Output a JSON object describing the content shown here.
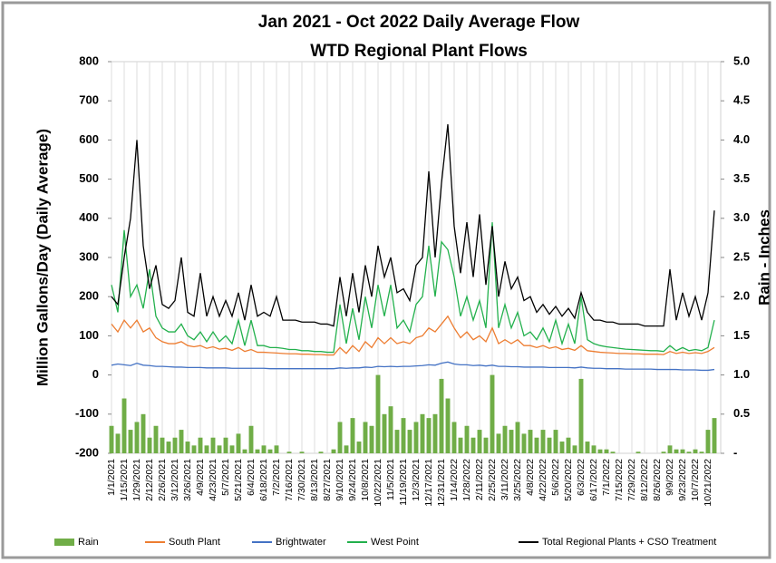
{
  "chart_data": {
    "type": "line",
    "title": "Jan 2021 - Oct 2022 Daily Average Flow",
    "subtitle": "WTD Regional Plant Flows",
    "y_label": "Million Gallons/Day (Daily Average)",
    "y2_label": "Rain - Inches",
    "categories": [
      "1/1/2021",
      null,
      "1/15/2021",
      null,
      "1/29/2021",
      null,
      "2/12/2021",
      null,
      "2/26/2021",
      null,
      "3/12/2021",
      null,
      "3/26/2021",
      null,
      "4/9/2021",
      null,
      "4/23/2021",
      null,
      "5/7/2021",
      null,
      "5/21/2021",
      null,
      "6/4/2021",
      null,
      "6/18/2021",
      null,
      "7/2/2021",
      null,
      "7/16/2021",
      null,
      "7/30/2021",
      null,
      "8/13/2021",
      null,
      "8/27/2021",
      null,
      "9/10/2021",
      null,
      "9/24/2021",
      null,
      "10/8/2021",
      null,
      "10/22/2021",
      null,
      "11/5/2021",
      null,
      "11/19/2021",
      null,
      "12/3/2021",
      null,
      "12/17/2021",
      null,
      "12/31/2021",
      null,
      "1/14/2022",
      null,
      "1/28/2022",
      null,
      "2/11/2022",
      null,
      "2/25/2022",
      null,
      "3/11/2022",
      null,
      "3/25/2022",
      null,
      "4/8/2022",
      null,
      "4/22/2022",
      null,
      "5/6/2022",
      null,
      "5/20/2022",
      null,
      "6/3/2022",
      null,
      "6/17/2022",
      null,
      "7/1/2022",
      null,
      "7/15/2022",
      null,
      "7/29/2022",
      null,
      "8/12/2022",
      null,
      "8/26/2022",
      null,
      "9/9/2022",
      null,
      "9/23/2022",
      null,
      "10/7/2022",
      null,
      "10/21/2022",
      null
    ],
    "series": [
      {
        "name": "Rain",
        "type": "bar",
        "axis": "y2",
        "color": "#70ad47",
        "values": [
          0.35,
          0.25,
          0.7,
          0.3,
          0.4,
          0.5,
          0.2,
          0.35,
          0.2,
          0.15,
          0.2,
          0.3,
          0.15,
          0.1,
          0.2,
          0.1,
          0.2,
          0.1,
          0.2,
          0.1,
          0.25,
          0.05,
          0.35,
          0.05,
          0.1,
          0.05,
          0.1,
          0,
          0.02,
          0,
          0.02,
          0,
          0,
          0.02,
          0,
          0.05,
          0.4,
          0.1,
          0.45,
          0.15,
          0.4,
          0.35,
          1.0,
          0.5,
          0.6,
          0.3,
          0.45,
          0.3,
          0.4,
          0.5,
          0.45,
          0.5,
          0.95,
          0.7,
          0.4,
          0.2,
          0.35,
          0.2,
          0.3,
          0.2,
          1.0,
          0.25,
          0.35,
          0.3,
          0.4,
          0.25,
          0.3,
          0.2,
          0.3,
          0.2,
          0.3,
          0.15,
          0.2,
          0.1,
          0.95,
          0.15,
          0.1,
          0.05,
          0.05,
          0.02,
          0,
          0,
          0,
          0.02,
          0,
          0,
          0,
          0.02,
          0.1,
          0.05,
          0.05,
          0.02,
          0.05,
          0.02,
          0.3,
          0.45
        ]
      },
      {
        "name": "South Plant",
        "color": "#ed7d31",
        "values": [
          130,
          110,
          140,
          120,
          140,
          110,
          120,
          95,
          85,
          80,
          80,
          85,
          75,
          72,
          75,
          68,
          72,
          66,
          68,
          63,
          70,
          60,
          65,
          58,
          58,
          57,
          56,
          55,
          54,
          54,
          53,
          53,
          52,
          52,
          51,
          51,
          70,
          55,
          75,
          60,
          85,
          70,
          95,
          80,
          95,
          80,
          85,
          80,
          95,
          100,
          120,
          110,
          130,
          150,
          120,
          95,
          110,
          90,
          100,
          85,
          120,
          80,
          90,
          80,
          90,
          75,
          75,
          70,
          75,
          68,
          72,
          65,
          68,
          63,
          75,
          62,
          60,
          58,
          57,
          56,
          55,
          55,
          54,
          54,
          53,
          53,
          53,
          52,
          60,
          55,
          58,
          55,
          57,
          55,
          60,
          70
        ]
      },
      {
        "name": "Brightwater",
        "color": "#4472c4",
        "values": [
          25,
          28,
          26,
          24,
          30,
          25,
          24,
          22,
          22,
          21,
          20,
          20,
          19,
          19,
          19,
          18,
          18,
          18,
          18,
          17,
          17,
          17,
          17,
          17,
          17,
          16,
          16,
          16,
          16,
          16,
          16,
          16,
          16,
          16,
          16,
          16,
          18,
          17,
          18,
          18,
          20,
          19,
          22,
          21,
          22,
          21,
          22,
          22,
          23,
          24,
          26,
          25,
          30,
          33,
          28,
          26,
          26,
          24,
          25,
          23,
          25,
          22,
          22,
          21,
          21,
          20,
          20,
          20,
          20,
          19,
          19,
          19,
          19,
          18,
          20,
          18,
          17,
          17,
          16,
          16,
          16,
          15,
          15,
          15,
          15,
          15,
          14,
          14,
          14,
          14,
          13,
          13,
          13,
          12,
          12,
          14
        ]
      },
      {
        "name": "West Point",
        "color": "#22b04c",
        "values": [
          230,
          160,
          370,
          200,
          230,
          170,
          270,
          150,
          120,
          110,
          110,
          130,
          100,
          90,
          110,
          85,
          110,
          85,
          100,
          80,
          140,
          75,
          140,
          75,
          75,
          70,
          70,
          68,
          65,
          65,
          62,
          62,
          60,
          60,
          58,
          58,
          180,
          80,
          170,
          90,
          200,
          120,
          230,
          150,
          230,
          120,
          140,
          110,
          180,
          200,
          330,
          200,
          340,
          320,
          250,
          150,
          200,
          140,
          190,
          120,
          390,
          120,
          180,
          120,
          160,
          100,
          110,
          90,
          120,
          85,
          140,
          80,
          130,
          80,
          200,
          90,
          80,
          75,
          72,
          70,
          68,
          66,
          65,
          64,
          63,
          62,
          62,
          60,
          75,
          62,
          70,
          62,
          65,
          62,
          70,
          140
        ]
      },
      {
        "name": "Total Regional Plants + CSO Treatment",
        "color": "#000000",
        "values": [
          200,
          180,
          300,
          400,
          600,
          330,
          220,
          280,
          180,
          170,
          190,
          300,
          160,
          150,
          260,
          150,
          200,
          150,
          190,
          150,
          210,
          140,
          230,
          150,
          160,
          150,
          200,
          140,
          140,
          140,
          135,
          135,
          135,
          130,
          130,
          125,
          250,
          150,
          260,
          160,
          280,
          200,
          330,
          250,
          300,
          210,
          220,
          190,
          280,
          300,
          520,
          300,
          490,
          640,
          380,
          260,
          390,
          250,
          410,
          230,
          380,
          200,
          290,
          220,
          250,
          190,
          200,
          160,
          180,
          155,
          175,
          150,
          170,
          145,
          210,
          160,
          140,
          140,
          135,
          135,
          130,
          130,
          130,
          130,
          125,
          125,
          125,
          125,
          270,
          140,
          210,
          150,
          200,
          140,
          210,
          420
        ]
      }
    ],
    "ylim": [
      -200,
      800
    ],
    "yticks": [
      -200,
      -100,
      0,
      100,
      200,
      300,
      400,
      500,
      600,
      700,
      800
    ],
    "y2lim": [
      0,
      5
    ],
    "y2ticks": [
      {
        "value": 0,
        "label": "-"
      },
      0.5,
      {
        "value": 1,
        "label": "1.0"
      },
      1.5,
      {
        "value": 2,
        "label": "2.0"
      },
      2.5,
      {
        "value": 3,
        "label": "3.0"
      },
      3.5,
      {
        "value": 4,
        "label": "4.0"
      },
      4.5,
      {
        "value": 5,
        "label": "5.0"
      }
    ],
    "grid": "x",
    "legend": "bottom"
  }
}
